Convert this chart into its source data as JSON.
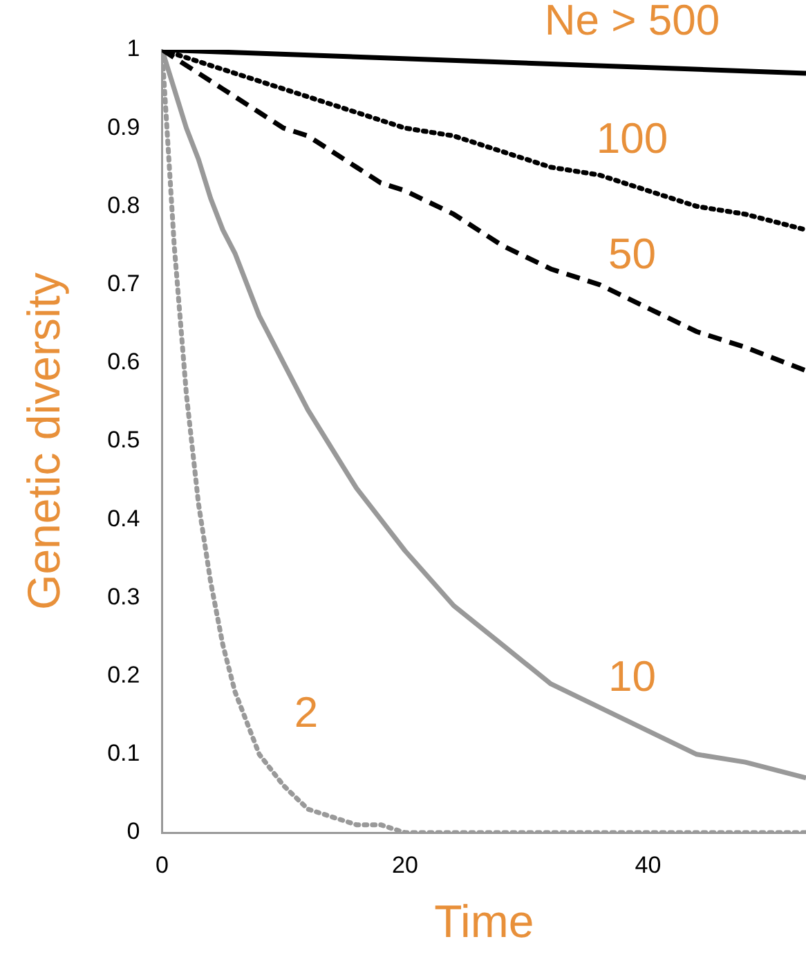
{
  "chart_data": {
    "type": "line",
    "xlabel": "Time",
    "ylabel": "Genetic diversity",
    "x": [
      0,
      1,
      2,
      3,
      4,
      5,
      6,
      8,
      10,
      12,
      14,
      16,
      18,
      20,
      24,
      28,
      32,
      36,
      40,
      44,
      48,
      53
    ],
    "series": [
      {
        "name": "Ne > 500",
        "color": "#000000",
        "line_style": "solid",
        "x": [
          0,
          53
        ],
        "values": [
          1,
          0.97
        ]
      },
      {
        "name": "100",
        "color": "#000000",
        "line_style": "dotted",
        "values": [
          1,
          0.995,
          0.99,
          0.985,
          0.98,
          0.975,
          0.97,
          0.96,
          0.95,
          0.94,
          0.93,
          0.92,
          0.91,
          0.9,
          0.89,
          0.87,
          0.85,
          0.84,
          0.82,
          0.8,
          0.79,
          0.77
        ]
      },
      {
        "name": "50",
        "color": "#000000",
        "line_style": "dashed",
        "values": [
          1,
          0.99,
          0.98,
          0.97,
          0.96,
          0.95,
          0.94,
          0.92,
          0.9,
          0.89,
          0.87,
          0.85,
          0.83,
          0.82,
          0.79,
          0.75,
          0.72,
          0.7,
          0.67,
          0.64,
          0.62,
          0.59
        ]
      },
      {
        "name": "10",
        "color": "#999999",
        "line_style": "solid",
        "values": [
          1,
          0.95,
          0.9,
          0.86,
          0.81,
          0.77,
          0.74,
          0.66,
          0.6,
          0.54,
          0.49,
          0.44,
          0.4,
          0.36,
          0.29,
          0.24,
          0.19,
          0.16,
          0.13,
          0.1,
          0.09,
          0.07
        ]
      },
      {
        "name": "2",
        "color": "#999999",
        "line_style": "dotted",
        "values": [
          1,
          0.75,
          0.56,
          0.42,
          0.32,
          0.24,
          0.18,
          0.1,
          0.06,
          0.03,
          0.02,
          0.01,
          0.01,
          0,
          0,
          0,
          0,
          0,
          0,
          0,
          0,
          0
        ]
      }
    ],
    "xlim": [
      0,
      53
    ],
    "xticks": [
      0,
      20,
      40
    ],
    "ylim": [
      0,
      1
    ],
    "yticks": [
      0,
      0.1,
      0.2,
      0.3,
      0.4,
      0.5,
      0.6,
      0.7,
      0.8,
      0.9,
      1
    ],
    "grid": false,
    "legend": false,
    "marker": "none"
  }
}
